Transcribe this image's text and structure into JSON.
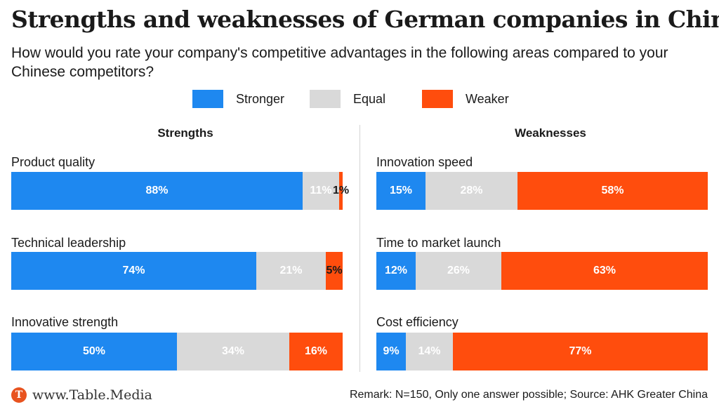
{
  "title": "Strengths and weaknesses of German companies in China",
  "subtitle": "How would you rate your company's competitive advantages in the following areas compared to your Chinese competitors?",
  "legend": [
    {
      "label": "Stronger",
      "color": "#1e88f0"
    },
    {
      "label": "Equal",
      "color": "#d9d9d9"
    },
    {
      "label": "Weaker",
      "color": "#ff4d0d"
    }
  ],
  "footer": {
    "logo_letter": "T",
    "logo_text": "www.Table.Media",
    "note": "Remark: N=150, Only one answer possible; Source: AHK Greater China"
  },
  "chart_data": {
    "type": "bar",
    "stacked": true,
    "orientation": "horizontal",
    "series_names": [
      "Stronger",
      "Equal",
      "Weaker"
    ],
    "colors": [
      "#1e88f0",
      "#d9d9d9",
      "#ff4d0d"
    ],
    "label_colors": [
      "#ffffff",
      "#ffffff",
      "#ffffff"
    ],
    "panels": [
      {
        "title": "Strengths",
        "rows": [
          {
            "category": "Product quality",
            "values": [
              88,
              11,
              1
            ],
            "labels": [
              "88%",
              "11%",
              "1%"
            ]
          },
          {
            "category": "Technical leadership",
            "values": [
              74,
              21,
              5
            ],
            "labels": [
              "74%",
              "21%",
              "5%"
            ]
          },
          {
            "category": "Innovative strength",
            "values": [
              50,
              34,
              16
            ],
            "labels": [
              "50%",
              "34%",
              "16%"
            ]
          }
        ]
      },
      {
        "title": "Weaknesses",
        "rows": [
          {
            "category": "Innovation speed",
            "values": [
              15,
              28,
              58
            ],
            "labels": [
              "15%",
              "28%",
              "58%"
            ]
          },
          {
            "category": "Time to market launch",
            "values": [
              12,
              26,
              63
            ],
            "labels": [
              "12%",
              "26%",
              "63%"
            ]
          },
          {
            "category": "Cost efficiency",
            "values": [
              9,
              14,
              77
            ],
            "labels": [
              "9%",
              "14%",
              "77%"
            ]
          }
        ]
      }
    ]
  }
}
